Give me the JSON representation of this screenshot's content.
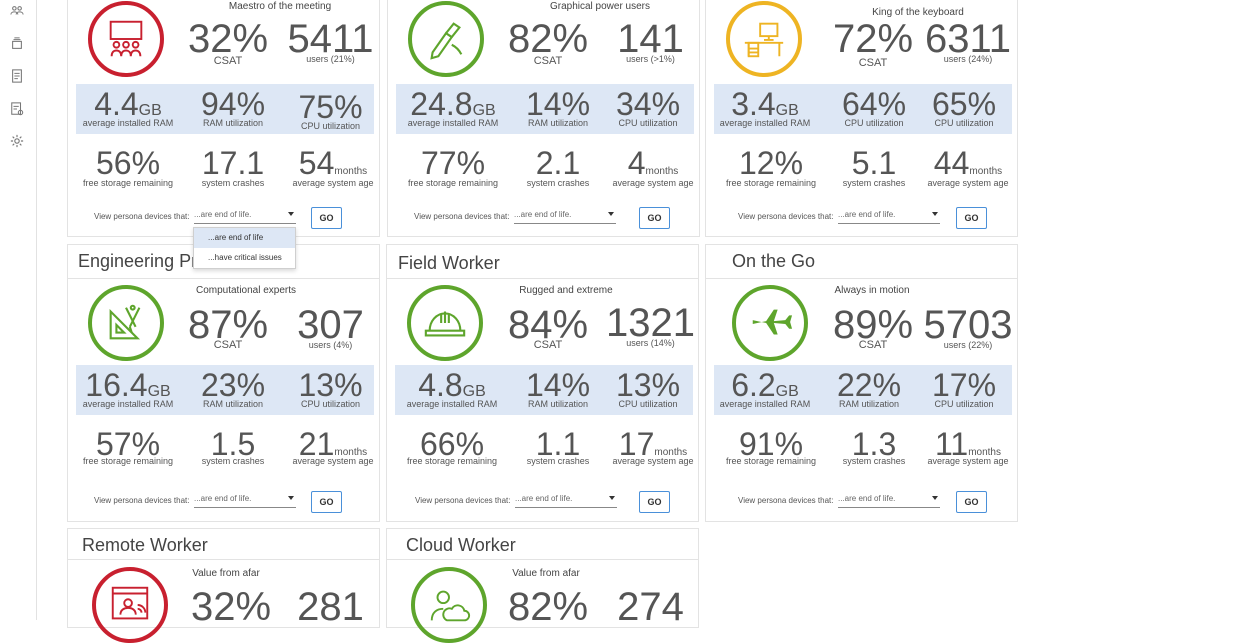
{
  "sidebar": {
    "icons": [
      "users-icon",
      "layers-icon",
      "document-icon",
      "report-icon",
      "gear-icon"
    ]
  },
  "common": {
    "csat_label": "CSAT",
    "ram_avg_label": "average installed RAM",
    "ram_util_label": "RAM utilization",
    "cpu_util_label": "CPU utilization",
    "storage_label": "free storage remaining",
    "crashes_label": "system crashes",
    "age_label": "average system age",
    "gb_unit": "GB",
    "months_unit": "months",
    "view_label": "View persona devices that:",
    "select_value": "...are end of life.",
    "go_label": "GO"
  },
  "colors": {
    "red": "#c8202f",
    "green": "#5ea52c",
    "amber": "#eeb423",
    "band": "#dde7f5",
    "go_border": "#4a90d9"
  },
  "dropdown": {
    "options": [
      "...are end of life",
      "...have critical issues"
    ]
  },
  "cards": [
    {
      "title": "",
      "subtitle": "Maestro of the meeting",
      "icon": "meeting-icon",
      "csat": "32%",
      "users": "5411",
      "users_label": "users (21%)",
      "ram": "4.4",
      "ram_util": "94%",
      "cpu_util": "75%",
      "storage": "56%",
      "crashes": "17.1",
      "age": "54"
    },
    {
      "title": "",
      "subtitle": "Graphical power users",
      "icon": "pen-icon",
      "csat": "82%",
      "users": "141",
      "users_label": "users (>1%)",
      "ram": "24.8",
      "ram_util": "14%",
      "cpu_util": "34%",
      "storage": "77%",
      "crashes": "2.1",
      "age": "4"
    },
    {
      "title": "",
      "subtitle": "King of the keyboard",
      "icon": "desk-icon",
      "csat": "72%",
      "users": "6311",
      "users_label": "users (24%)",
      "ram": "3.4",
      "ram_util": "64%",
      "cpu_util": "65%",
      "storage": "12%",
      "crashes": "5.1",
      "age": "44"
    },
    {
      "title": "Engineering Pro",
      "subtitle": "Computational experts",
      "icon": "drafting-icon",
      "csat": "87%",
      "users": "307",
      "users_label": "users (4%)",
      "ram": "16.4",
      "ram_util": "23%",
      "cpu_util": "13%",
      "storage": "57%",
      "crashes": "1.5",
      "age": "21"
    },
    {
      "title": "Field Worker",
      "subtitle": "Rugged and extreme",
      "icon": "hardhat-icon",
      "csat": "84%",
      "users": "1321",
      "users_label": "users (14%)",
      "ram": "4.8",
      "ram_util": "14%",
      "cpu_util": "13%",
      "storage": "66%",
      "crashes": "1.1",
      "age": "17"
    },
    {
      "title": "On the Go",
      "subtitle": "Always in motion",
      "icon": "airplane-icon",
      "csat": "89%",
      "users": "5703",
      "users_label": "users (22%)",
      "ram": "6.2",
      "ram_util": "22%",
      "cpu_util": "17%",
      "storage": "91%",
      "crashes": "1.3",
      "age": "11"
    },
    {
      "title": "Remote Worker",
      "subtitle": "Value from afar",
      "icon": "remote-user-icon",
      "csat": "32%",
      "users": "281"
    },
    {
      "title": "Cloud Worker",
      "subtitle": "Value from afar",
      "icon": "cloud-user-icon",
      "csat": "82%",
      "users": "274"
    }
  ]
}
